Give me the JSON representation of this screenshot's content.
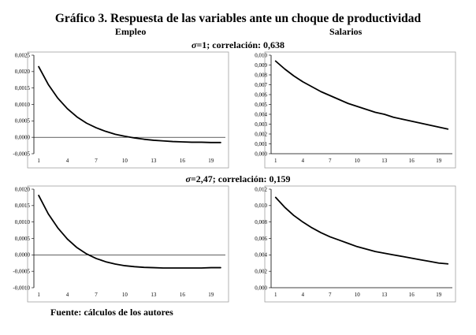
{
  "title": "Gráfico 3. Respuesta de las variables ante un choque de productividad",
  "column_titles": {
    "left": "Empleo",
    "right": "Salarios"
  },
  "row_titles": [
    {
      "symbol": "σ",
      "rest": "=1; correlación: 0,638"
    },
    {
      "symbol": "σ",
      "rest": "=2,47; correlación: 0,159"
    }
  ],
  "source": "Fuente: cálculos de los autores",
  "chart_data": [
    {
      "type": "line",
      "title": "",
      "x": [
        1,
        2,
        3,
        4,
        5,
        6,
        7,
        8,
        9,
        10,
        11,
        12,
        13,
        14,
        15,
        16,
        17,
        18,
        19,
        20
      ],
      "xticks": [
        "1",
        "4",
        "7",
        "10",
        "13",
        "16",
        "19"
      ],
      "ylim": [
        -0.0005,
        0.0025
      ],
      "yticks": [
        "-0,0005",
        "0,0000",
        "0,0005",
        "0,0010",
        "0,0015",
        "0,0020",
        "0,0025"
      ],
      "zero_line": true,
      "series": [
        {
          "values": [
            0.00215,
            0.00161,
            0.00119,
            0.00087,
            0.00062,
            0.00043,
            0.00029,
            0.00018,
            9e-05,
            3e-05,
            -2e-05,
            -6e-05,
            -9e-05,
            -0.00011,
            -0.00013,
            -0.00014,
            -0.00015,
            -0.00015,
            -0.00016,
            -0.00016
          ]
        }
      ]
    },
    {
      "type": "line",
      "title": "",
      "x": [
        1,
        2,
        3,
        4,
        5,
        6,
        7,
        8,
        9,
        10,
        11,
        12,
        13,
        14,
        15,
        16,
        17,
        18,
        19,
        20
      ],
      "xticks": [
        "1",
        "4",
        "7",
        "10",
        "13",
        "16",
        "19"
      ],
      "ylim": [
        0,
        0.01
      ],
      "yticks": [
        "0,000",
        "0,001",
        "0,002",
        "0,003",
        "0,004",
        "0,005",
        "0,006",
        "0,007",
        "0,008",
        "0,009",
        "0,010"
      ],
      "zero_line": false,
      "series": [
        {
          "values": [
            0.0094,
            0.0086,
            0.0079,
            0.0073,
            0.0068,
            0.0063,
            0.0059,
            0.0055,
            0.0051,
            0.0048,
            0.0045,
            0.0042,
            0.004,
            0.0037,
            0.0035,
            0.0033,
            0.0031,
            0.0029,
            0.0027,
            0.0025
          ]
        }
      ]
    },
    {
      "type": "line",
      "title": "",
      "x": [
        1,
        2,
        3,
        4,
        5,
        6,
        7,
        8,
        9,
        10,
        11,
        12,
        13,
        14,
        15,
        16,
        17,
        18,
        19,
        20
      ],
      "xticks": [
        "1",
        "4",
        "7",
        "10",
        "13",
        "16",
        "19"
      ],
      "ylim": [
        -0.001,
        0.002
      ],
      "yticks": [
        "-0,0010",
        "-0,0005",
        "0,0000",
        "0,0005",
        "0,0010",
        "0,0015",
        "0,0020"
      ],
      "zero_line": true,
      "series": [
        {
          "values": [
            0.00181,
            0.00125,
            0.00082,
            0.00048,
            0.00022,
            3e-05,
            -0.00011,
            -0.00021,
            -0.00028,
            -0.00033,
            -0.00036,
            -0.00038,
            -0.00039,
            -0.0004,
            -0.0004,
            -0.0004,
            -0.0004,
            -0.0004,
            -0.00039,
            -0.00039
          ]
        }
      ]
    },
    {
      "type": "line",
      "title": "",
      "x": [
        1,
        2,
        3,
        4,
        5,
        6,
        7,
        8,
        9,
        10,
        11,
        12,
        13,
        14,
        15,
        16,
        17,
        18,
        19,
        20
      ],
      "xticks": [
        "1",
        "4",
        "7",
        "10",
        "13",
        "16",
        "19"
      ],
      "ylim": [
        0,
        0.012
      ],
      "yticks": [
        "0,000",
        "0,002",
        "0,004",
        "0,006",
        "0,008",
        "0,010",
        "0,012"
      ],
      "zero_line": false,
      "series": [
        {
          "values": [
            0.011,
            0.0098,
            0.0088,
            0.008,
            0.0073,
            0.0067,
            0.0062,
            0.0058,
            0.0054,
            0.005,
            0.0047,
            0.0044,
            0.0042,
            0.004,
            0.0038,
            0.0036,
            0.0034,
            0.0032,
            0.003,
            0.0029
          ]
        }
      ]
    }
  ]
}
